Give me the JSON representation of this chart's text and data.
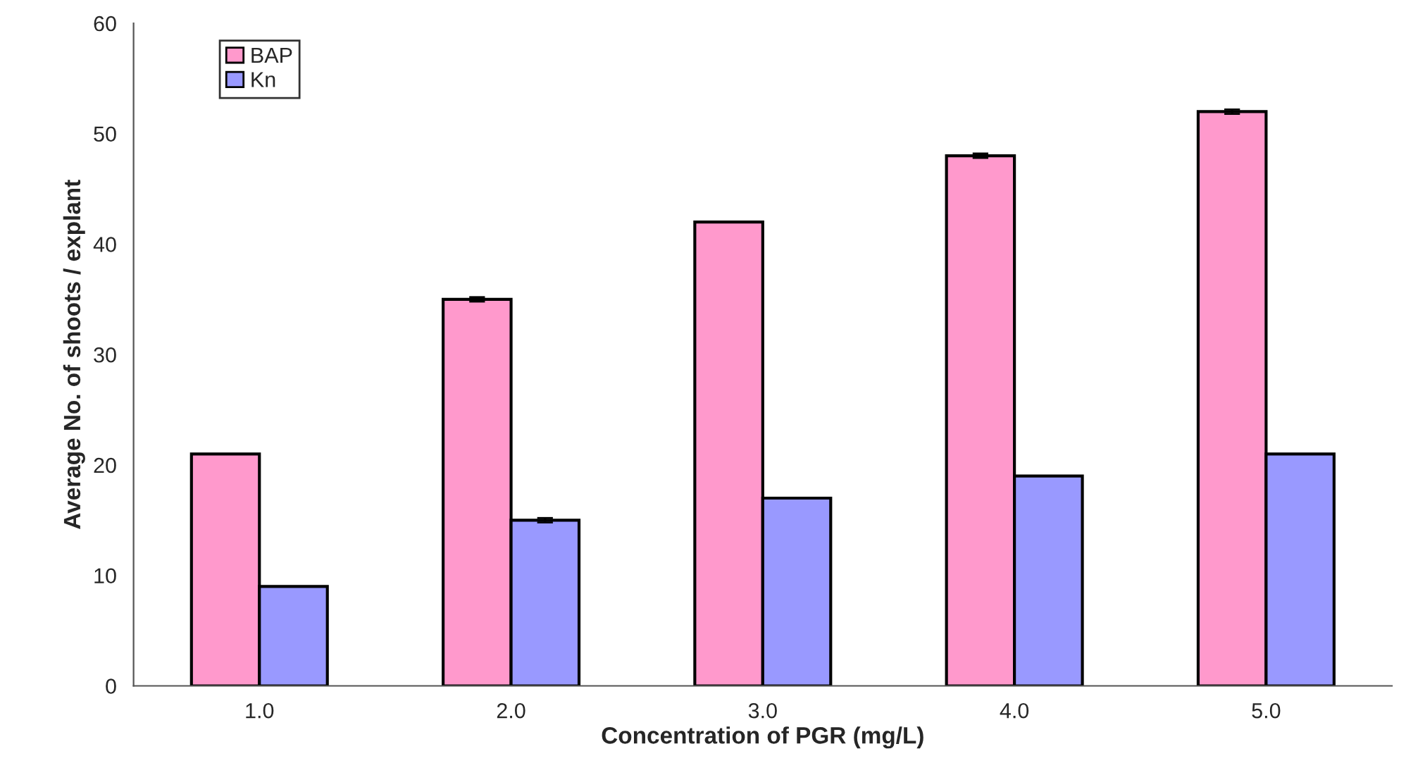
{
  "chart_data": {
    "type": "bar",
    "xlabel": "Concentration of PGR (mg/L)",
    "ylabel": "Average No. of shoots / explant",
    "categories": [
      "1.0",
      "2.0",
      "3.0",
      "4.0",
      "5.0"
    ],
    "series": [
      {
        "name": "BAP",
        "color": "#ff99cc",
        "values": [
          21,
          35,
          42,
          48,
          52
        ],
        "errors": [
          null,
          0.2,
          null,
          0.2,
          0.2
        ]
      },
      {
        "name": "Kn",
        "color": "#9999ff",
        "values": [
          9,
          15,
          17,
          19,
          21
        ],
        "errors": [
          null,
          0.2,
          null,
          null,
          null
        ]
      }
    ],
    "ylim": [
      0,
      60
    ],
    "yticks": [
      0,
      10,
      20,
      30,
      40,
      50,
      60
    ],
    "grid": false,
    "legend": "top left"
  }
}
